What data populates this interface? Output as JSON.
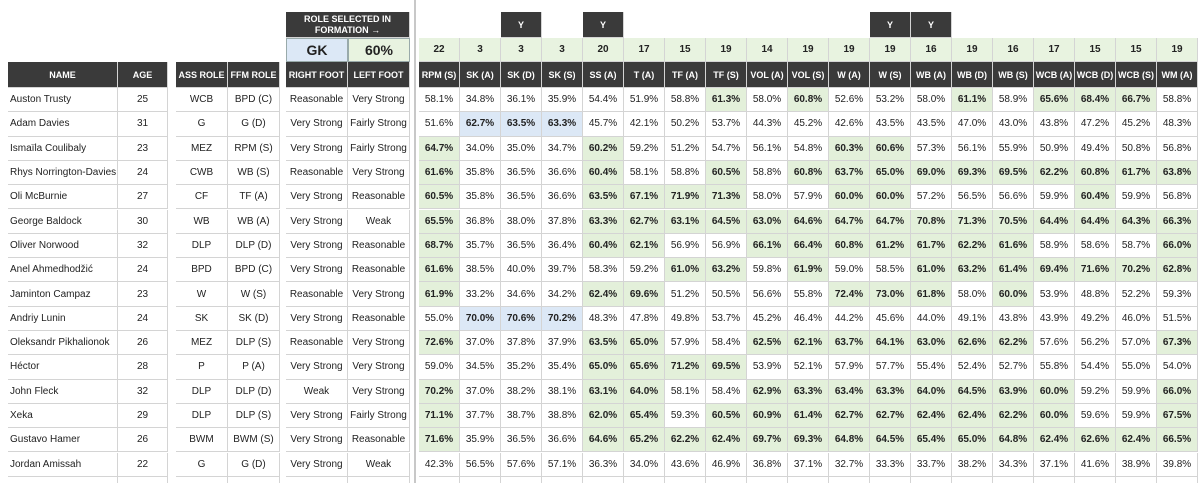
{
  "formation": {
    "title": "ROLE SELECTED IN FORMATION →",
    "role": "GK",
    "percent": "60%"
  },
  "headers": [
    "NAME",
    "AGE",
    "ASS ROLE",
    "FFM ROLE",
    "RIGHT FOOT",
    "LEFT FOOT"
  ],
  "role_columns": [
    {
      "label": "RPM (S)",
      "count": "22",
      "tag": ""
    },
    {
      "label": "SK (A)",
      "count": "3",
      "tag": ""
    },
    {
      "label": "SK (D)",
      "count": "3",
      "tag": "Y"
    },
    {
      "label": "SK (S)",
      "count": "3",
      "tag": ""
    },
    {
      "label": "SS (A)",
      "count": "20",
      "tag": "Y"
    },
    {
      "label": "T (A)",
      "count": "17",
      "tag": ""
    },
    {
      "label": "TF (A)",
      "count": "15",
      "tag": ""
    },
    {
      "label": "TF (S)",
      "count": "19",
      "tag": ""
    },
    {
      "label": "VOL (A)",
      "count": "14",
      "tag": ""
    },
    {
      "label": "VOL (S)",
      "count": "19",
      "tag": ""
    },
    {
      "label": "W (A)",
      "count": "19",
      "tag": ""
    },
    {
      "label": "W (S)",
      "count": "19",
      "tag": "Y"
    },
    {
      "label": "WB (A)",
      "count": "16",
      "tag": "Y"
    },
    {
      "label": "WB (D)",
      "count": "19",
      "tag": ""
    },
    {
      "label": "WB (S)",
      "count": "16",
      "tag": ""
    },
    {
      "label": "WCB (A)",
      "count": "17",
      "tag": ""
    },
    {
      "label": "WCB (D)",
      "count": "15",
      "tag": ""
    },
    {
      "label": "WCB (S)",
      "count": "15",
      "tag": ""
    },
    {
      "label": "WM (A)",
      "count": "19",
      "tag": ""
    }
  ],
  "players": [
    {
      "name": "Auston Trusty",
      "age": "25",
      "ass": "WCB",
      "ffm": "BPD (C)",
      "rf": "Reasonable",
      "lf": "Very Strong",
      "v": [
        "58.1%",
        "34.8%",
        "36.1%",
        "35.9%",
        "54.4%",
        "51.9%",
        "58.8%",
        "61.3%",
        "58.0%",
        "60.8%",
        "52.6%",
        "53.2%",
        "58.0%",
        "61.1%",
        "58.9%",
        "65.6%",
        "68.4%",
        "66.7%",
        "58.8%"
      ],
      "h": [
        0,
        0,
        0,
        0,
        0,
        0,
        0,
        1,
        0,
        1,
        0,
        0,
        0,
        1,
        0,
        1,
        1,
        1,
        0
      ]
    },
    {
      "name": "Adam Davies",
      "age": "31",
      "ass": "G",
      "ffm": "G (D)",
      "rf": "Very Strong",
      "lf": "Fairly Strong",
      "v": [
        "51.6%",
        "62.7%",
        "63.5%",
        "63.3%",
        "45.7%",
        "42.1%",
        "50.2%",
        "53.7%",
        "44.3%",
        "45.2%",
        "42.6%",
        "43.5%",
        "43.5%",
        "47.0%",
        "43.0%",
        "43.8%",
        "47.2%",
        "45.2%",
        "48.3%"
      ],
      "h": [
        0,
        2,
        2,
        2,
        0,
        0,
        0,
        0,
        0,
        0,
        0,
        0,
        0,
        0,
        0,
        0,
        0,
        0,
        0
      ]
    },
    {
      "name": "Ismaïla Coulibaly",
      "age": "23",
      "ass": "MEZ",
      "ffm": "RPM (S)",
      "rf": "Very Strong",
      "lf": "Fairly Strong",
      "v": [
        "64.7%",
        "34.0%",
        "35.0%",
        "34.7%",
        "60.2%",
        "59.2%",
        "51.2%",
        "54.7%",
        "56.1%",
        "54.8%",
        "60.3%",
        "60.6%",
        "57.3%",
        "56.1%",
        "55.9%",
        "50.9%",
        "49.4%",
        "50.8%",
        "56.8%"
      ],
      "h": [
        1,
        0,
        0,
        0,
        1,
        0,
        0,
        0,
        0,
        0,
        1,
        1,
        0,
        0,
        0,
        0,
        0,
        0,
        0
      ]
    },
    {
      "name": "Rhys Norrington-Davies",
      "age": "24",
      "ass": "CWB",
      "ffm": "WB (S)",
      "rf": "Reasonable",
      "lf": "Very Strong",
      "v": [
        "61.6%",
        "35.8%",
        "36.5%",
        "36.6%",
        "60.4%",
        "58.1%",
        "58.8%",
        "60.5%",
        "58.8%",
        "60.8%",
        "63.7%",
        "65.0%",
        "69.0%",
        "69.3%",
        "69.5%",
        "62.2%",
        "60.8%",
        "61.7%",
        "63.8%"
      ],
      "h": [
        1,
        0,
        0,
        0,
        1,
        0,
        0,
        1,
        0,
        1,
        1,
        1,
        1,
        1,
        1,
        1,
        1,
        1,
        1
      ]
    },
    {
      "name": "Oli McBurnie",
      "age": "27",
      "ass": "CF",
      "ffm": "TF (A)",
      "rf": "Very Strong",
      "lf": "Reasonable",
      "v": [
        "60.5%",
        "35.8%",
        "36.5%",
        "36.6%",
        "63.5%",
        "67.1%",
        "71.9%",
        "71.3%",
        "58.0%",
        "57.9%",
        "60.0%",
        "60.0%",
        "57.2%",
        "56.5%",
        "56.6%",
        "59.9%",
        "60.4%",
        "59.9%",
        "56.8%"
      ],
      "h": [
        1,
        0,
        0,
        0,
        1,
        1,
        1,
        1,
        0,
        0,
        1,
        1,
        0,
        0,
        0,
        0,
        1,
        0,
        0
      ]
    },
    {
      "name": "George Baldock",
      "age": "30",
      "ass": "WB",
      "ffm": "WB (A)",
      "rf": "Very Strong",
      "lf": "Weak",
      "v": [
        "65.5%",
        "36.8%",
        "38.0%",
        "37.8%",
        "63.3%",
        "62.7%",
        "63.1%",
        "64.5%",
        "63.0%",
        "64.6%",
        "64.7%",
        "64.7%",
        "70.8%",
        "71.3%",
        "70.5%",
        "64.4%",
        "64.4%",
        "64.3%",
        "66.3%"
      ],
      "h": [
        1,
        0,
        0,
        0,
        1,
        1,
        1,
        1,
        1,
        1,
        1,
        1,
        1,
        1,
        1,
        1,
        1,
        1,
        1
      ]
    },
    {
      "name": "Oliver Norwood",
      "age": "32",
      "ass": "DLP",
      "ffm": "DLP (D)",
      "rf": "Very Strong",
      "lf": "Reasonable",
      "v": [
        "68.7%",
        "35.7%",
        "36.5%",
        "36.4%",
        "60.4%",
        "62.1%",
        "56.9%",
        "56.9%",
        "66.1%",
        "66.4%",
        "60.8%",
        "61.2%",
        "61.7%",
        "62.2%",
        "61.6%",
        "58.9%",
        "58.6%",
        "58.7%",
        "66.0%"
      ],
      "h": [
        1,
        0,
        0,
        0,
        1,
        1,
        0,
        0,
        1,
        1,
        1,
        1,
        1,
        1,
        1,
        0,
        0,
        0,
        1
      ]
    },
    {
      "name": "Anel Ahmedhodžić",
      "age": "24",
      "ass": "BPD",
      "ffm": "BPD (C)",
      "rf": "Very Strong",
      "lf": "Reasonable",
      "v": [
        "61.6%",
        "38.5%",
        "40.0%",
        "39.7%",
        "58.3%",
        "59.2%",
        "61.0%",
        "63.2%",
        "59.8%",
        "61.9%",
        "59.0%",
        "58.5%",
        "61.0%",
        "63.2%",
        "61.4%",
        "69.4%",
        "71.6%",
        "70.2%",
        "62.8%"
      ],
      "h": [
        1,
        0,
        0,
        0,
        0,
        0,
        1,
        1,
        0,
        1,
        0,
        0,
        1,
        1,
        1,
        1,
        1,
        1,
        1
      ]
    },
    {
      "name": "Jaminton Campaz",
      "age": "23",
      "ass": "W",
      "ffm": "W (S)",
      "rf": "Reasonable",
      "lf": "Very Strong",
      "v": [
        "61.9%",
        "33.2%",
        "34.6%",
        "34.2%",
        "62.4%",
        "69.6%",
        "51.2%",
        "50.5%",
        "56.6%",
        "55.8%",
        "72.4%",
        "73.0%",
        "61.8%",
        "58.0%",
        "60.0%",
        "53.9%",
        "48.8%",
        "52.2%",
        "59.3%"
      ],
      "h": [
        1,
        0,
        0,
        0,
        1,
        1,
        0,
        0,
        0,
        0,
        1,
        1,
        1,
        0,
        1,
        0,
        0,
        0,
        0
      ]
    },
    {
      "name": "Andriy Lunin",
      "age": "24",
      "ass": "SK",
      "ffm": "SK (D)",
      "rf": "Very Strong",
      "lf": "Reasonable",
      "v": [
        "55.0%",
        "70.0%",
        "70.6%",
        "70.2%",
        "48.3%",
        "47.8%",
        "49.8%",
        "53.7%",
        "45.2%",
        "46.4%",
        "44.2%",
        "45.6%",
        "44.0%",
        "49.1%",
        "43.8%",
        "43.9%",
        "49.2%",
        "46.0%",
        "51.5%"
      ],
      "h": [
        0,
        2,
        2,
        2,
        0,
        0,
        0,
        0,
        0,
        0,
        0,
        0,
        0,
        0,
        0,
        0,
        0,
        0,
        0
      ]
    },
    {
      "name": "Oleksandr Pikhalionok",
      "age": "26",
      "ass": "MEZ",
      "ffm": "DLP (S)",
      "rf": "Reasonable",
      "lf": "Very Strong",
      "v": [
        "72.6%",
        "37.0%",
        "37.8%",
        "37.9%",
        "63.5%",
        "65.0%",
        "57.9%",
        "58.4%",
        "62.5%",
        "62.1%",
        "63.7%",
        "64.1%",
        "63.0%",
        "62.6%",
        "62.2%",
        "57.6%",
        "56.2%",
        "57.0%",
        "67.3%"
      ],
      "h": [
        1,
        0,
        0,
        0,
        1,
        1,
        0,
        0,
        1,
        1,
        1,
        1,
        1,
        1,
        1,
        0,
        0,
        0,
        1
      ]
    },
    {
      "name": "Héctor",
      "age": "28",
      "ass": "P",
      "ffm": "P (A)",
      "rf": "Very Strong",
      "lf": "Very Strong",
      "v": [
        "59.0%",
        "34.5%",
        "35.2%",
        "35.4%",
        "65.0%",
        "65.6%",
        "71.2%",
        "69.5%",
        "53.9%",
        "52.1%",
        "57.9%",
        "57.7%",
        "55.4%",
        "52.4%",
        "52.7%",
        "55.8%",
        "54.4%",
        "55.0%",
        "54.0%"
      ],
      "h": [
        0,
        0,
        0,
        0,
        1,
        1,
        1,
        1,
        0,
        0,
        0,
        0,
        0,
        0,
        0,
        0,
        0,
        0,
        0
      ]
    },
    {
      "name": "John Fleck",
      "age": "32",
      "ass": "DLP",
      "ffm": "DLP (D)",
      "rf": "Weak",
      "lf": "Very Strong",
      "v": [
        "70.2%",
        "37.0%",
        "38.2%",
        "38.1%",
        "63.1%",
        "64.0%",
        "58.1%",
        "58.4%",
        "62.9%",
        "63.3%",
        "63.4%",
        "63.3%",
        "64.0%",
        "64.5%",
        "63.9%",
        "60.0%",
        "59.2%",
        "59.9%",
        "66.0%"
      ],
      "h": [
        1,
        0,
        0,
        0,
        1,
        1,
        0,
        0,
        1,
        1,
        1,
        1,
        1,
        1,
        1,
        1,
        0,
        0,
        1
      ]
    },
    {
      "name": "Xeka",
      "age": "29",
      "ass": "DLP",
      "ffm": "DLP (S)",
      "rf": "Very Strong",
      "lf": "Fairly Strong",
      "v": [
        "71.1%",
        "37.7%",
        "38.7%",
        "38.8%",
        "62.0%",
        "65.4%",
        "59.3%",
        "60.5%",
        "60.9%",
        "61.4%",
        "62.7%",
        "62.7%",
        "62.4%",
        "62.4%",
        "62.2%",
        "60.0%",
        "59.6%",
        "59.9%",
        "67.5%"
      ],
      "h": [
        1,
        0,
        0,
        0,
        1,
        1,
        0,
        1,
        1,
        1,
        1,
        1,
        1,
        1,
        1,
        1,
        0,
        0,
        1
      ]
    },
    {
      "name": "Gustavo Hamer",
      "age": "26",
      "ass": "BWM",
      "ffm": "BWM (S)",
      "rf": "Very Strong",
      "lf": "Reasonable",
      "v": [
        "71.6%",
        "35.9%",
        "36.5%",
        "36.6%",
        "64.6%",
        "65.2%",
        "62.2%",
        "62.4%",
        "69.7%",
        "69.3%",
        "64.8%",
        "64.5%",
        "65.4%",
        "65.0%",
        "64.8%",
        "62.4%",
        "62.6%",
        "62.4%",
        "66.5%"
      ],
      "h": [
        1,
        0,
        0,
        0,
        1,
        1,
        1,
        1,
        1,
        1,
        1,
        1,
        1,
        1,
        1,
        1,
        1,
        1,
        1
      ]
    },
    {
      "name": "Jordan Amissah",
      "age": "22",
      "ass": "G",
      "ffm": "G (D)",
      "rf": "Very Strong",
      "lf": "Weak",
      "v": [
        "42.3%",
        "56.5%",
        "57.6%",
        "57.1%",
        "36.3%",
        "34.0%",
        "43.6%",
        "46.9%",
        "36.8%",
        "37.1%",
        "32.7%",
        "33.3%",
        "33.7%",
        "38.2%",
        "34.3%",
        "37.1%",
        "41.6%",
        "38.9%",
        "39.8%"
      ],
      "h": [
        0,
        0,
        0,
        0,
        0,
        0,
        0,
        0,
        0,
        0,
        0,
        0,
        0,
        0,
        0,
        0,
        0,
        0,
        0
      ]
    }
  ]
}
